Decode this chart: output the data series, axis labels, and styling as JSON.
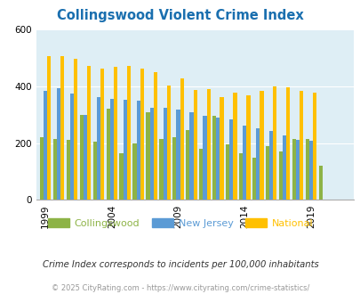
{
  "title": "Collingswood Violent Crime Index",
  "title_color": "#1a6faf",
  "years": [
    1999,
    2000,
    2001,
    2002,
    2003,
    2004,
    2005,
    2006,
    2007,
    2008,
    2009,
    2010,
    2011,
    2012,
    2013,
    2014,
    2015,
    2016,
    2017,
    2018,
    2019,
    2020,
    2021
  ],
  "collingswood": [
    220,
    215,
    210,
    300,
    205,
    320,
    165,
    200,
    310,
    215,
    220,
    245,
    180,
    295,
    195,
    165,
    148,
    190,
    170,
    215,
    215,
    120,
    0
  ],
  "new_jersey": [
    383,
    393,
    375,
    300,
    362,
    355,
    353,
    350,
    325,
    325,
    318,
    308,
    295,
    290,
    283,
    262,
    252,
    242,
    228,
    212,
    207,
    0,
    0
  ],
  "national": [
    507,
    507,
    498,
    472,
    462,
    469,
    472,
    463,
    450,
    404,
    427,
    388,
    390,
    362,
    376,
    369,
    384,
    399,
    396,
    384,
    377,
    0,
    0
  ],
  "bar_width": 0.28,
  "colors": {
    "collingswood": "#8db346",
    "new_jersey": "#5b9bd5",
    "national": "#ffc000"
  },
  "ylim": [
    0,
    600
  ],
  "yticks": [
    0,
    200,
    400,
    600
  ],
  "xticks": [
    1999,
    2004,
    2009,
    2014,
    2019
  ],
  "bg_color": "#deeef5",
  "footnote": "Crime Index corresponds to incidents per 100,000 inhabitants",
  "copyright": "© 2025 CityRating.com - https://www.cityrating.com/crime-statistics/",
  "legend_labels": [
    "Collingswood",
    "New Jersey",
    "National"
  ]
}
